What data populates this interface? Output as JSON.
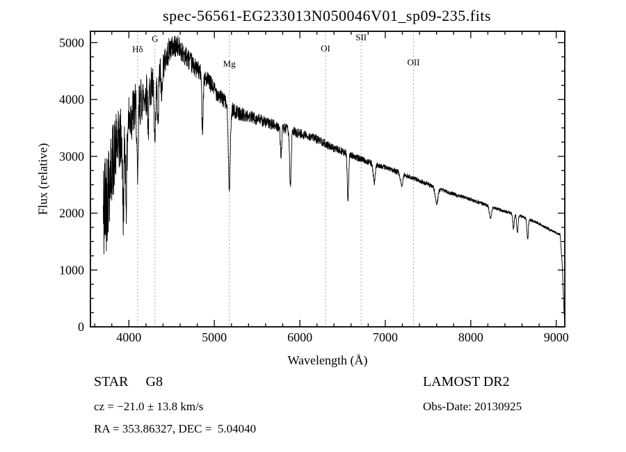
{
  "header": {
    "title": "spec-56561-EG233013N050046V01_sp09-235.fits"
  },
  "chart_data": {
    "type": "line",
    "title": "spec-56561-EG233013N050046V01_sp09-235.fits",
    "xlabel": "Wavelength (Å)",
    "ylabel": "Flux (relative)",
    "xlim": [
      3550,
      9100
    ],
    "ylim": [
      0,
      5200
    ],
    "xticks": [
      4000,
      5000,
      6000,
      7000,
      8000,
      9000
    ],
    "yticks": [
      0,
      1000,
      2000,
      3000,
      4000,
      5000
    ],
    "x_minor_step": 200,
    "y_minor_step": 250,
    "grid": "off",
    "line_color": "#000000",
    "marker_color": "#8a8a8a",
    "line_markers": [
      {
        "label": "Hδ",
        "wavelength": 4102,
        "label_y": 75
      },
      {
        "label": "G",
        "wavelength": 4305,
        "label_y": 60
      },
      {
        "label": "Mg",
        "wavelength": 5175,
        "label_y": 96
      },
      {
        "label": "OI",
        "wavelength": 6300,
        "label_y": 74
      },
      {
        "label": "SII",
        "wavelength": 6717,
        "label_y": 58
      },
      {
        "label": "OII",
        "wavelength": 7330,
        "label_y": 94
      }
    ],
    "spectrum": {
      "wl_start": 3700,
      "wl_end": 9100,
      "step": 2,
      "seed": 42,
      "continuum": [
        [
          3700,
          1900
        ],
        [
          3720,
          2150
        ],
        [
          3760,
          2500
        ],
        [
          3800,
          2850
        ],
        [
          3850,
          3150
        ],
        [
          3900,
          3300
        ],
        [
          3950,
          3450
        ],
        [
          4000,
          3650
        ],
        [
          4060,
          3800
        ],
        [
          4150,
          4000
        ],
        [
          4250,
          4200
        ],
        [
          4400,
          4600
        ],
        [
          4480,
          4900
        ],
        [
          4560,
          4950
        ],
        [
          4650,
          4800
        ],
        [
          4750,
          4600
        ],
        [
          4850,
          4450
        ],
        [
          4950,
          4280
        ],
        [
          5050,
          4080
        ],
        [
          5150,
          3920
        ],
        [
          5250,
          3780
        ],
        [
          5350,
          3720
        ],
        [
          5450,
          3680
        ],
        [
          5550,
          3630
        ],
        [
          5650,
          3570
        ],
        [
          5750,
          3520
        ],
        [
          5850,
          3470
        ],
        [
          5950,
          3420
        ],
        [
          6050,
          3380
        ],
        [
          6150,
          3330
        ],
        [
          6250,
          3270
        ],
        [
          6350,
          3170
        ],
        [
          6450,
          3110
        ],
        [
          6550,
          3050
        ],
        [
          6650,
          2990
        ],
        [
          6750,
          2930
        ],
        [
          6850,
          2880
        ],
        [
          6950,
          2830
        ],
        [
          7100,
          2750
        ],
        [
          7250,
          2660
        ],
        [
          7400,
          2570
        ],
        [
          7550,
          2480
        ],
        [
          7700,
          2390
        ],
        [
          7850,
          2310
        ],
        [
          8000,
          2240
        ],
        [
          8150,
          2160
        ],
        [
          8300,
          2080
        ],
        [
          8450,
          2010
        ],
        [
          8600,
          1940
        ],
        [
          8750,
          1850
        ],
        [
          8900,
          1730
        ],
        [
          9000,
          1650
        ],
        [
          9045,
          1620
        ],
        [
          9070,
          1100
        ],
        [
          9090,
          300
        ],
        [
          9100,
          60
        ]
      ],
      "noise": [
        [
          3700,
          1150
        ],
        [
          3760,
          850
        ],
        [
          3850,
          600
        ],
        [
          3950,
          520
        ],
        [
          4050,
          470
        ],
        [
          4200,
          380
        ],
        [
          4350,
          300
        ],
        [
          4500,
          210
        ],
        [
          4700,
          180
        ],
        [
          5000,
          150
        ],
        [
          5300,
          125
        ],
        [
          5600,
          105
        ],
        [
          5900,
          92
        ],
        [
          6200,
          80
        ],
        [
          6500,
          68
        ],
        [
          6800,
          56
        ],
        [
          7100,
          46
        ],
        [
          7500,
          38
        ],
        [
          8000,
          32
        ],
        [
          8500,
          27
        ],
        [
          9000,
          22
        ]
      ],
      "absorption": [
        [
          3934,
          1400,
          8
        ],
        [
          3969,
          1250,
          8
        ],
        [
          4102,
          1500,
          7
        ],
        [
          4227,
          650,
          6
        ],
        [
          4305,
          1150,
          10
        ],
        [
          4340,
          950,
          7
        ],
        [
          4383,
          550,
          6
        ],
        [
          4861,
          900,
          8
        ],
        [
          5175,
          1380,
          12
        ],
        [
          5780,
          480,
          8
        ],
        [
          5890,
          980,
          9
        ],
        [
          6563,
          800,
          8
        ],
        [
          6870,
          330,
          12
        ],
        [
          7190,
          200,
          14
        ],
        [
          7600,
          280,
          16
        ],
        [
          8230,
          200,
          12
        ],
        [
          8500,
          260,
          8
        ],
        [
          8545,
          320,
          8
        ],
        [
          8665,
          360,
          8
        ]
      ]
    }
  },
  "annotations": {
    "class_label": "STAR     G8",
    "cz": "cz = −21.0 ± 13.8 km/s",
    "radec": "RA = 353.86327, DEC =  5.04040",
    "survey": "LAMOST DR2",
    "obs_date": "Obs-Date: 20130925"
  }
}
